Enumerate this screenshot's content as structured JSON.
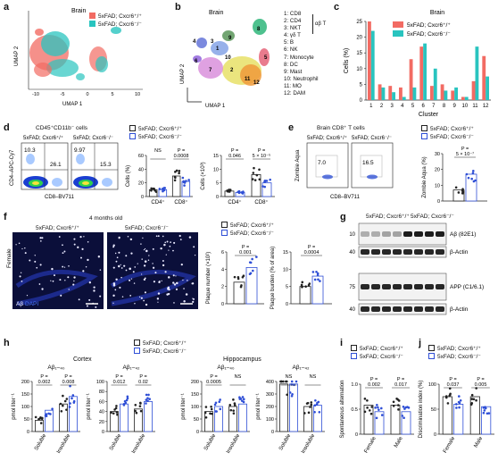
{
  "colors": {
    "wt": "#f26b63",
    "ko": "#29c4bf",
    "wt_dot": "#222222",
    "ko_dot": "#2f4fd6",
    "flow_bg": "#1a3fd1"
  },
  "labels": {
    "a": "a",
    "b": "b",
    "c": "c",
    "d": "d",
    "e": "e",
    "f": "f",
    "g": "g",
    "h": "h",
    "i": "i",
    "j": "j",
    "brain": "Brain",
    "brain_cd8": "Brain CD8⁺ T cells",
    "months": "4 months old",
    "wt": "5xFAD; Cxcr6⁺/⁺",
    "ko": "5xFAD; Cxcr6⁻/⁻",
    "umap1": "UMAP 1",
    "umap2": "UMAP 2",
    "cells_pct": "Cells (%)",
    "cluster": "Cluster",
    "cd45": "CD45⁺CD11b⁻ cells",
    "cd4_apc": "CD4–APC-Cy7",
    "cd8_bv": "CD8–BV711",
    "zombie": "Zombie Aqua",
    "zombie_pct": "Zombie Aqua (%)",
    "cells_e3": "Cells (×10³)",
    "cd4p": "CD4⁺",
    "cd8p": "CD8⁺",
    "female": "Female",
    "abdapi_ab": "Aβ",
    "abdapi_dapi": "DAPI",
    "plaque_num": "Plaque number (×10²)",
    "plaque_burden": "Plaque burden (% of area)",
    "ab82": "Aβ (82E1)",
    "bactin": "β-Actin",
    "app": "APP (C1/6.1)",
    "cortex": "Cortex",
    "hippocampus": "Hippocampus",
    "ab40": "Aβ₁–₄₀",
    "ab42": "Aβ₁–₄₂",
    "pmol": "pmol liter⁻¹",
    "soluble": "Soluble",
    "insoluble": "Insoluble",
    "spont": "Spontaneous alternation",
    "discrim": "Discrimination index (%)",
    "male": "Male",
    "ns": "NS",
    "p": "P ="
  },
  "umap_ticks": {
    "x": [
      "-10",
      "-5",
      "0",
      "5",
      "10"
    ]
  },
  "cluster_labels": [
    "1: CD8",
    "2: CD4",
    "3: NKT",
    "4: γδ T",
    "5: B",
    "6: NK",
    "7: Monocyte",
    "8: DC",
    "9: Mast",
    "10: Neutrophil",
    "11: MO",
    "12: DAM"
  ],
  "cluster_group": "αβ T",
  "flow_d": {
    "wt_q1": "10.3",
    "wt_q4": "26.1",
    "ko_q1": "9.97",
    "ko_q4": "15.3"
  },
  "flow_e": {
    "wt": "7.0",
    "ko": "16.5"
  },
  "wb_marks": {
    "m10": "10",
    "m40": "40",
    "m75": "75",
    "m40b": "40"
  },
  "pvals": {
    "d_pct_cd4": "NS",
    "d_pct_cd8": "0.0008",
    "d_num_cd4": "0.046",
    "d_num_cd8": "5 × 10⁻⁵",
    "e": "5 × 10⁻⁷",
    "f_num": "0.001",
    "f_burden": "0.0004",
    "h_c40_sol": "0.002",
    "h_c40_ins": "0.008",
    "h_c42_sol": "0.012",
    "h_c42_ins": "0.02",
    "h_h40_sol": "0.0005",
    "h_h40_ins": "NS",
    "h_h42_sol": "NS",
    "h_h42_ins": "NS",
    "i_f": "0.002",
    "i_m": "0.017",
    "j_f": "0.037",
    "j_m": "0.005"
  },
  "chart_data": [
    {
      "type": "bar",
      "panel": "c",
      "title": "Brain",
      "xlabel": "Cluster",
      "ylabel": "Cells (%)",
      "categories": [
        "1",
        "2",
        "3",
        "4",
        "5",
        "6",
        "7",
        "8",
        "9",
        "10",
        "11",
        "12"
      ],
      "ylim": [
        0,
        25
      ],
      "series": [
        {
          "name": "5xFAD; Cxcr6⁺/⁺",
          "values": [
            25,
            5,
            4.5,
            4,
            13,
            17,
            4.5,
            5,
            3,
            1,
            6,
            14
          ]
        },
        {
          "name": "5xFAD; Cxcr6⁻/⁻",
          "values": [
            22,
            4,
            2.5,
            1,
            4,
            18,
            10,
            3,
            4,
            1,
            17,
            7.5
          ]
        }
      ],
      "yticks": [
        "0",
        "5",
        "10",
        "15",
        "20",
        "25"
      ]
    },
    {
      "type": "bar",
      "panel": "d",
      "ylabel": "Cells (%)",
      "categories": [
        "CD4⁺",
        "CD8⁺"
      ],
      "ylim": [
        0,
        60
      ],
      "yticks": [
        "0",
        "20",
        "40",
        "60"
      ],
      "series": [
        {
          "name": "5xFAD; Cxcr6⁺/⁺",
          "values": [
            10,
            30
          ]
        },
        {
          "name": "5xFAD; Cxcr6⁻/⁻",
          "values": [
            10,
            22
          ]
        }
      ]
    },
    {
      "type": "bar",
      "panel": "d2",
      "ylabel": "Cells (×10³)",
      "categories": [
        "CD4⁺",
        "CD8⁺"
      ],
      "ylim": [
        0,
        15
      ],
      "yticks": [
        "0",
        "5",
        "10",
        "15"
      ],
      "series": [
        {
          "name": "5xFAD; Cxcr6⁺/⁺",
          "values": [
            2,
            8
          ]
        },
        {
          "name": "5xFAD; Cxcr6⁻/⁻",
          "values": [
            1.5,
            5
          ]
        }
      ]
    },
    {
      "type": "bar",
      "panel": "e",
      "ylabel": "Zombie Aqua (%)",
      "categories": [
        ""
      ],
      "ylim": [
        0,
        30
      ],
      "yticks": [
        "0",
        "10",
        "20",
        "30"
      ],
      "series": [
        {
          "name": "5xFAD; Cxcr6⁺/⁺",
          "values": [
            7
          ]
        },
        {
          "name": "5xFAD; Cxcr6⁻/⁻",
          "values": [
            17
          ]
        }
      ]
    },
    {
      "type": "bar",
      "panel": "f1",
      "ylabel": "Plaque number (×10²)",
      "categories": [
        ""
      ],
      "ylim": [
        0,
        6
      ],
      "yticks": [
        "0",
        "2",
        "4",
        "6"
      ],
      "series": [
        {
          "name": "5xFAD; Cxcr6⁺/⁺",
          "values": [
            2.5
          ]
        },
        {
          "name": "5xFAD; Cxcr6⁻/⁻",
          "values": [
            4.2
          ]
        }
      ]
    },
    {
      "type": "bar",
      "panel": "f2",
      "ylabel": "Plaque burden (% of area)",
      "categories": [
        ""
      ],
      "ylim": [
        0,
        15
      ],
      "yticks": [
        "0",
        "5",
        "10",
        "15"
      ],
      "series": [
        {
          "name": "5xFAD; Cxcr6⁺/⁺",
          "values": [
            5
          ]
        },
        {
          "name": "5xFAD; Cxcr6⁻/⁻",
          "values": [
            8
          ]
        }
      ]
    },
    {
      "type": "bar",
      "panel": "h_c40",
      "title": "Aβ₁–₄₀",
      "ylabel": "pmol liter⁻¹",
      "categories": [
        "Soluble",
        "Insoluble"
      ],
      "ylim": [
        0,
        200
      ],
      "yticks": [
        "0",
        "50",
        "100",
        "150",
        "200"
      ],
      "series": [
        {
          "name": "5xFAD; Cxcr6⁺/⁺",
          "values": [
            45,
            110
          ]
        },
        {
          "name": "5xFAD; Cxcr6⁻/⁻",
          "values": [
            85,
            140
          ]
        }
      ]
    },
    {
      "type": "bar",
      "panel": "h_c42",
      "title": "Aβ₁–₄₂",
      "ylabel": "pmol liter⁻¹",
      "categories": [
        "Soluble",
        "Insoluble"
      ],
      "ylim": [
        0,
        100
      ],
      "yticks": [
        "0",
        "20",
        "40",
        "60",
        "80",
        "100"
      ],
      "series": [
        {
          "name": "5xFAD; Cxcr6⁺/⁺",
          "values": [
            40,
            45
          ]
        },
        {
          "name": "5xFAD; Cxcr6⁻/⁻",
          "values": [
            55,
            60
          ]
        }
      ]
    },
    {
      "type": "bar",
      "panel": "h_h40",
      "title": "Aβ₁–₄₀",
      "ylabel": "pmol liter⁻¹",
      "categories": [
        "Soluble",
        "Insoluble"
      ],
      "ylim": [
        0,
        200
      ],
      "yticks": [
        "0",
        "50",
        "100",
        "150",
        "200"
      ],
      "series": [
        {
          "name": "5xFAD; Cxcr6⁺/⁺",
          "values": [
            80,
            100
          ]
        },
        {
          "name": "5xFAD; Cxcr6⁻/⁻",
          "values": [
            100,
            110
          ]
        }
      ]
    },
    {
      "type": "bar",
      "panel": "h_h42",
      "title": "Aβ₁–₄₂",
      "ylabel": "pmol liter⁻¹",
      "categories": [
        "Soluble",
        "Insoluble"
      ],
      "ylim": [
        0,
        400
      ],
      "yticks": [
        "0",
        "100",
        "200",
        "300",
        "400"
      ],
      "series": [
        {
          "name": "5xFAD; Cxcr6⁺/⁺",
          "values": [
            380,
            200
          ]
        },
        {
          "name": "5xFAD; Cxcr6⁻/⁻",
          "values": [
            380,
            210
          ]
        }
      ]
    },
    {
      "type": "bar",
      "panel": "i",
      "ylabel": "Spontaneous alternation",
      "categories": [
        "Female",
        "Male"
      ],
      "ylim": [
        0,
        1
      ],
      "yticks": [
        "0",
        "0.5",
        "1.0"
      ],
      "series": [
        {
          "name": "5xFAD; Cxcr6⁺/⁺",
          "values": [
            0.58,
            0.58
          ]
        },
        {
          "name": "5xFAD; Cxcr6⁻/⁻",
          "values": [
            0.45,
            0.45
          ]
        }
      ]
    },
    {
      "type": "bar",
      "panel": "j",
      "ylabel": "Discrimination index (%)",
      "categories": [
        "Female",
        "Male"
      ],
      "ylim": [
        0,
        100
      ],
      "yticks": [
        "0",
        "50",
        "100"
      ],
      "series": [
        {
          "name": "5xFAD; Cxcr6⁺/⁺",
          "values": [
            75,
            75
          ]
        },
        {
          "name": "5xFAD; Cxcr6⁻/⁻",
          "values": [
            60,
            55
          ]
        }
      ]
    }
  ]
}
